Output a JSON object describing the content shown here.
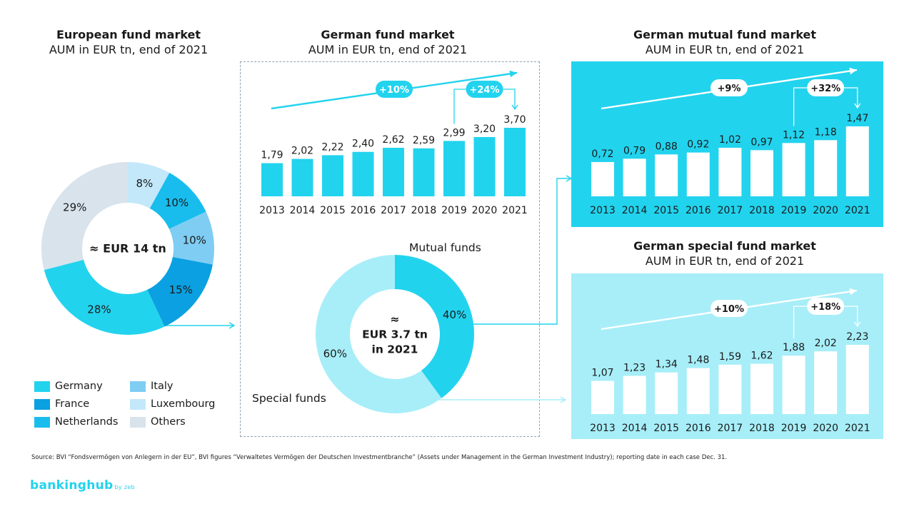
{
  "source": "Source: BVI “Fondsvermögen von Anlegern in der EU”, BVI figures “Verwaltetes Vermögen der Deutschen Investmentbranche” (Assets under Management in the German Investment Industry); reporting date in each case Dec. 31.",
  "logo": {
    "main": "bankinghub",
    "suffix": "by zeb"
  },
  "colors": {
    "cyan": "#22d3ee",
    "lightcyan": "#a7eef8",
    "blue": "#0aa0e2",
    "lightblue": "#c3e8fa",
    "midblue": "#7fcdf3",
    "grey": "#d8e3ec",
    "dash": "#8fa3b0"
  },
  "chart_data": [
    {
      "type": "pie",
      "title": "European fund market",
      "subtitle": "AUM in EUR tn, end of 2021",
      "center_label": "≈ EUR 14 tn",
      "slices": [
        {
          "name": "Luxembourg",
          "value": 8,
          "label": "8%",
          "color": "#c3e8fa"
        },
        {
          "name": "Netherlands",
          "value": 10,
          "label": "10%",
          "color": "#18bdee"
        },
        {
          "name": "Italy",
          "value": 10,
          "label": "10%",
          "color": "#7fcdf3"
        },
        {
          "name": "France",
          "value": 15,
          "label": "15%",
          "color": "#0aa0e2"
        },
        {
          "name": "Germany",
          "value": 28,
          "label": "28%",
          "color": "#22d3ee"
        },
        {
          "name": "Others",
          "value": 29,
          "label": "29%",
          "color": "#d8e3ec"
        }
      ],
      "legend": [
        {
          "name": "Germany",
          "color": "#22d3ee"
        },
        {
          "name": "France",
          "color": "#0aa0e2"
        },
        {
          "name": "Netherlands",
          "color": "#18bdee"
        },
        {
          "name": "Italy",
          "color": "#7fcdf3"
        },
        {
          "name": "Luxembourg",
          "color": "#c3e8fa"
        },
        {
          "name": "Others",
          "color": "#d8e3ec"
        }
      ]
    },
    {
      "type": "bar",
      "title": "German fund market",
      "subtitle": "AUM in EUR tn, end of 2021",
      "categories": [
        "2013",
        "2014",
        "2015",
        "2016",
        "2017",
        "2018",
        "2019",
        "2020",
        "2021"
      ],
      "values": [
        1.79,
        2.02,
        2.22,
        2.4,
        2.62,
        2.59,
        2.99,
        3.2,
        3.7
      ],
      "labels": [
        "1,79",
        "2,02",
        "2,22",
        "2,40",
        "2,62",
        "2,59",
        "2,99",
        "3,20",
        "3,70"
      ],
      "growth_total": "+10%",
      "growth_recent": "+24%",
      "ylim": [
        0,
        3.7
      ],
      "bar_color": "#22d3ee"
    },
    {
      "type": "pie",
      "center_label": [
        "≈",
        "EUR 3.7 tn",
        "in 2021"
      ],
      "slices": [
        {
          "name": "Mutual funds",
          "value": 40,
          "label": "40%",
          "color": "#22d3ee"
        },
        {
          "name": "Special funds",
          "value": 60,
          "label": "60%",
          "color": "#a7eef8"
        }
      ]
    },
    {
      "type": "bar",
      "title": "German mutual fund market",
      "subtitle": "AUM in EUR tn, end of 2021",
      "categories": [
        "2013",
        "2014",
        "2015",
        "2016",
        "2017",
        "2018",
        "2019",
        "2020",
        "2021"
      ],
      "values": [
        0.72,
        0.79,
        0.88,
        0.92,
        1.02,
        0.97,
        1.12,
        1.18,
        1.47
      ],
      "labels": [
        "0,72",
        "0,79",
        "0,88",
        "0,92",
        "1,02",
        "0,97",
        "1,12",
        "1,18",
        "1,47"
      ],
      "growth_total": "+9%",
      "growth_recent": "+32%",
      "ylim": [
        0,
        1.47
      ],
      "panel_color": "#22d3ee",
      "bar_color": "#ffffff"
    },
    {
      "type": "bar",
      "title": "German special fund market",
      "subtitle": "AUM in EUR tn, end of 2021",
      "categories": [
        "2013",
        "2014",
        "2015",
        "2016",
        "2017",
        "2018",
        "2019",
        "2020",
        "2021"
      ],
      "values": [
        1.07,
        1.23,
        1.34,
        1.48,
        1.59,
        1.62,
        1.88,
        2.02,
        2.23
      ],
      "labels": [
        "1,07",
        "1,23",
        "1,34",
        "1,48",
        "1,59",
        "1,62",
        "1,88",
        "2,02",
        "2,23"
      ],
      "growth_total": "+10%",
      "growth_recent": "+18%",
      "ylim": [
        0,
        2.23
      ],
      "panel_color": "#a7eef8",
      "bar_color": "#ffffff"
    }
  ]
}
